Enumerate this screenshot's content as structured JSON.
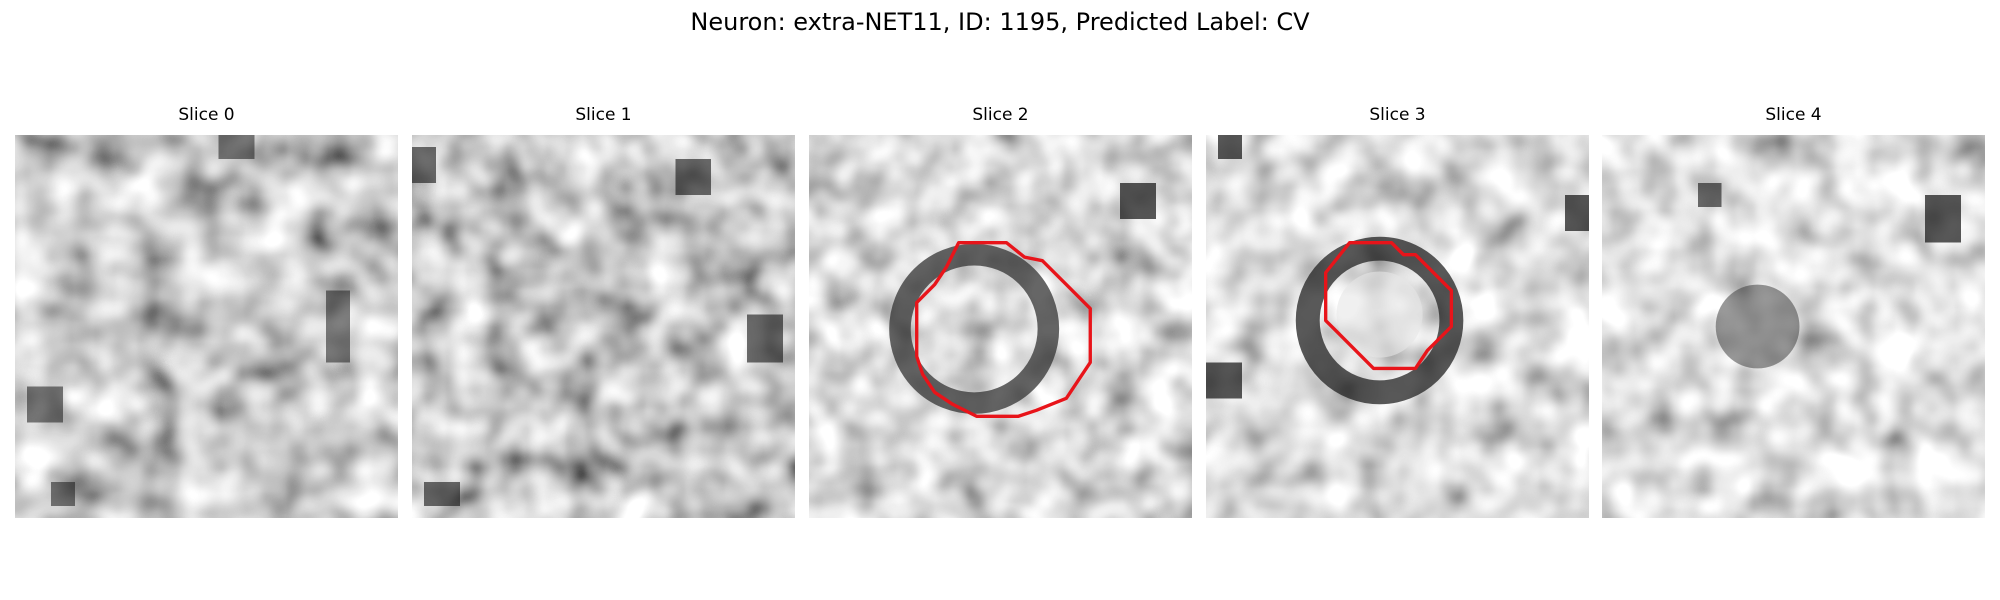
{
  "figure": {
    "title": "Neuron: extra-NET11, ID: 1195, Predicted Label: CV"
  },
  "slices": [
    {
      "label": "Slice 0",
      "has_contour": false
    },
    {
      "label": "Slice 1",
      "has_contour": false
    },
    {
      "label": "Slice 2",
      "has_contour": true
    },
    {
      "label": "Slice 3",
      "has_contour": true
    },
    {
      "label": "Slice 4",
      "has_contour": false
    }
  ],
  "contour_color": "#e8141a"
}
